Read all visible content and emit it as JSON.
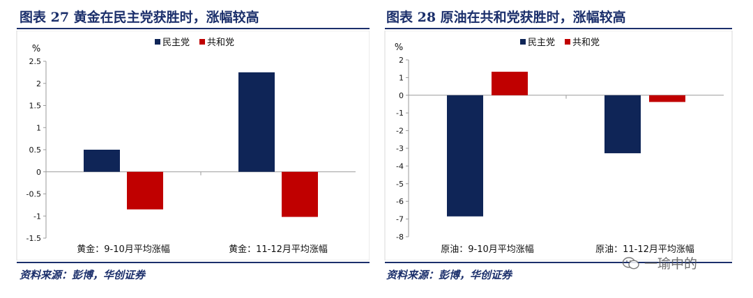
{
  "left": {
    "title": "图表 27   黄金在民主党获胜时，涨幅较高",
    "source": "资料来源：彭博，华创证券"
  },
  "right": {
    "title": "图表 28   原油在共和党获胜时，涨幅较高",
    "source": "资料来源：彭博，华创证券"
  },
  "watermark": "一瑜中的",
  "colors": {
    "democrat": "#0f2557",
    "republican": "#c00000",
    "frame": "#1b2f6b"
  },
  "chart_data": [
    {
      "type": "bar",
      "ylabel": "%",
      "ylim": [
        -1.5,
        2.5
      ],
      "yticks": [
        "2.5",
        "2",
        "1.5",
        "1",
        "0.5",
        "0",
        "-0.5",
        "-1",
        "-1.5"
      ],
      "categories": [
        "黄金：9-10月平均涨幅",
        "黄金：11-12月平均涨幅"
      ],
      "series": [
        {
          "name": "民主党",
          "values": [
            0.5,
            2.25
          ]
        },
        {
          "name": "共和党",
          "values": [
            -0.85,
            -1.02
          ]
        }
      ],
      "legend": "top-center",
      "grid": false
    },
    {
      "type": "bar",
      "ylabel": "%",
      "ylim": [
        -8,
        2
      ],
      "yticks": [
        "2",
        "1",
        "0",
        "-1",
        "-2",
        "-3",
        "-4",
        "-5",
        "-6",
        "-7",
        "-8"
      ],
      "categories": [
        "原油：9-10月平均涨幅",
        "原油：11-12月平均涨幅"
      ],
      "series": [
        {
          "name": "民主党",
          "values": [
            -6.85,
            -3.28
          ]
        },
        {
          "name": "共和党",
          "values": [
            1.33,
            -0.38
          ]
        }
      ],
      "legend": "top-center",
      "grid": false
    }
  ]
}
